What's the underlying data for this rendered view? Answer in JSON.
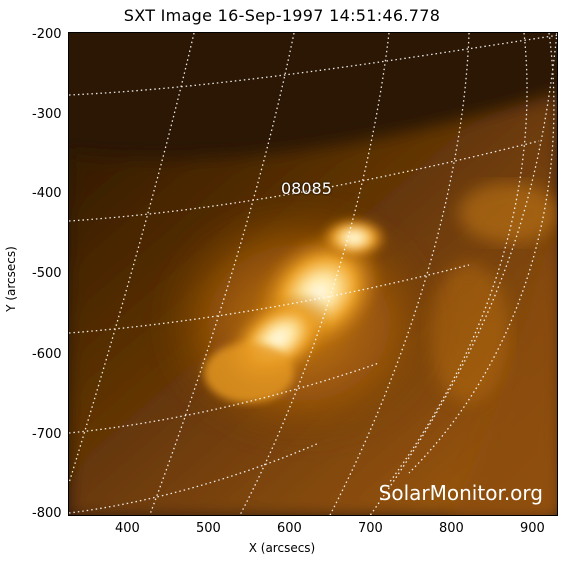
{
  "title": "SXT Image 16-Sep-1997 14:51:46.778",
  "xlabel": "X (arcsecs)",
  "ylabel": "Y (arcsecs)",
  "x_ticks": [
    "400",
    "500",
    "600",
    "700",
    "800",
    "900"
  ],
  "y_ticks": [
    "-200",
    "-300",
    "-400",
    "-500",
    "-600",
    "-700",
    "-800"
  ],
  "region_label": "08085",
  "watermark": "SolarMonitor.org",
  "colors": {
    "background": "#2b1704",
    "bright": "#fff6d8",
    "grid": "#ffffff"
  }
}
